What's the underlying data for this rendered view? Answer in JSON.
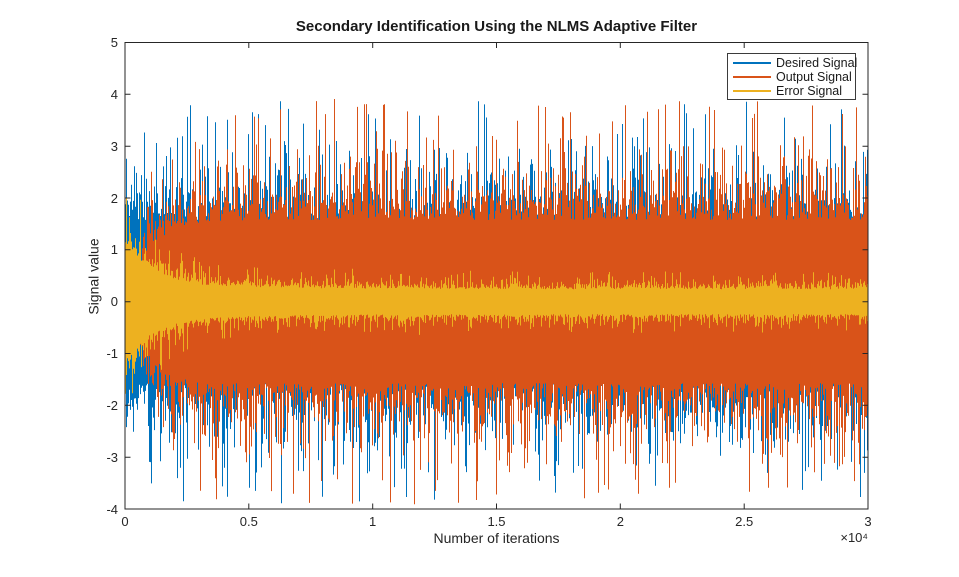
{
  "figure": {
    "background": "#ffffff",
    "axis_color": "#262626",
    "text_color": "#262626"
  },
  "chart_data": {
    "type": "line",
    "title": "Secondary Identification Using the NLMS Adaptive Filter",
    "xlabel": "Number of iterations",
    "ylabel": "Signal value",
    "x_multiplier": "×10⁴",
    "xlim": [
      0,
      30000
    ],
    "ylim": [
      -4,
      5
    ],
    "x_ticks": [
      0,
      5000,
      10000,
      15000,
      20000,
      25000,
      30000
    ],
    "x_tick_labels": [
      "0",
      "0.5",
      "1",
      "1.5",
      "2",
      "2.5",
      "3"
    ],
    "y_ticks": [
      -4,
      -3,
      -2,
      -1,
      0,
      1,
      2,
      3,
      4,
      5
    ],
    "y_tick_labels": [
      "-4",
      "-3",
      "-2",
      "-1",
      "0",
      "1",
      "2",
      "3",
      "4",
      "5"
    ],
    "grid": false,
    "legend_position": "top-right",
    "box": true,
    "envelope_x": [
      0,
      1000,
      2000,
      3000,
      4000,
      5000,
      6000,
      7000,
      8000,
      9000,
      10000,
      11000,
      12000,
      13000,
      14000,
      15000,
      16000,
      17000,
      18000,
      19000,
      20000,
      21000,
      22000,
      23000,
      24000,
      25000,
      26000,
      27000,
      28000,
      29000,
      30000
    ],
    "series": [
      {
        "name": "Desired Signal",
        "color": "#0072BD",
        "description": "Stationary broadband noise: dense band about ±1.6, frequent peaks to ±3, extremes near ±3.8 across all 30000 iterations",
        "sigma": [
          0.85,
          0.85,
          0.85,
          0.85,
          0.85,
          0.85,
          0.85,
          0.85,
          0.85,
          0.85,
          0.85,
          0.85,
          0.85,
          0.85,
          0.85,
          0.85,
          0.85,
          0.85,
          0.85,
          0.85,
          0.85,
          0.85,
          0.85,
          0.85,
          0.85,
          0.85,
          0.85,
          0.85,
          0.85,
          0.85,
          0.85
        ]
      },
      {
        "name": "Output Signal",
        "color": "#D95319",
        "description": "Adaptive filter output: starts near 0, converges to the desired-signal envelope within ~2500 iterations, then dense band ±1.6 with peaks near ±3.9",
        "sigma": [
          0,
          0.57,
          0.76,
          0.82,
          0.84,
          0.85,
          0.85,
          0.85,
          0.85,
          0.85,
          0.85,
          0.85,
          0.85,
          0.85,
          0.85,
          0.85,
          0.85,
          0.85,
          0.85,
          0.85,
          0.85,
          0.85,
          0.85,
          0.85,
          0.85,
          0.85,
          0.85,
          0.85,
          0.85,
          0.85,
          0.85
        ]
      },
      {
        "name": "Error Signal",
        "color": "#EDB120",
        "description": "Error shrinks from about ±1.3 at iteration 0 to a narrow steady band of about ±0.3 (spikes to ±0.6) after ~4000 iterations",
        "sigma": [
          0.6,
          0.34,
          0.23,
          0.18,
          0.16,
          0.15,
          0.15,
          0.14,
          0.14,
          0.14,
          0.13,
          0.14,
          0.14,
          0.13,
          0.13,
          0.13,
          0.14,
          0.13,
          0.13,
          0.13,
          0.13,
          0.14,
          0.13,
          0.13,
          0.13,
          0.13,
          0.14,
          0.13,
          0.13,
          0.13,
          0.13
        ]
      }
    ],
    "noise_model": {
      "seed": 77,
      "spike_base": 1.85,
      "spike_scale": 0.65,
      "spike_cap": 4.6,
      "columns": 743
    }
  },
  "legend": {
    "entries": [
      "Desired Signal",
      "Output Signal",
      "Error Signal"
    ]
  }
}
